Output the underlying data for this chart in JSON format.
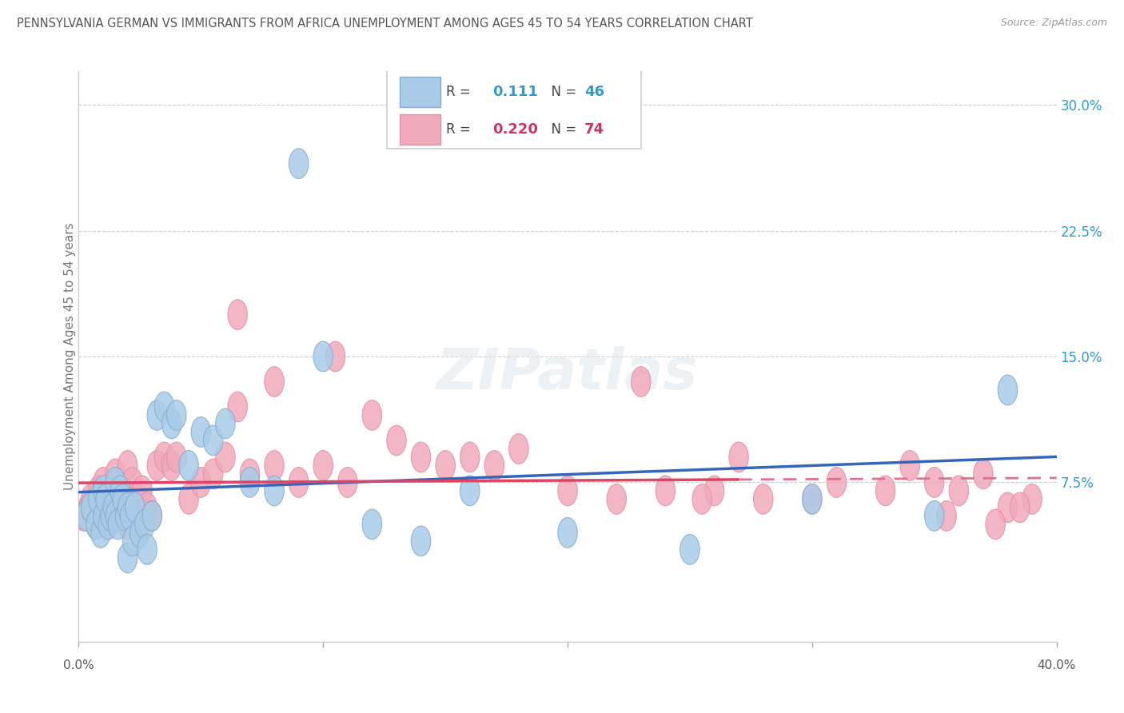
{
  "title": "PENNSYLVANIA GERMAN VS IMMIGRANTS FROM AFRICA UNEMPLOYMENT AMONG AGES 45 TO 54 YEARS CORRELATION CHART",
  "source": "Source: ZipAtlas.com",
  "ylabel": "Unemployment Among Ages 45 to 54 years",
  "xlim": [
    0,
    40
  ],
  "ylim": [
    -2,
    32
  ],
  "yticks": [
    0,
    7.5,
    15.0,
    22.5,
    30.0
  ],
  "ytick_labels": [
    "",
    "7.5%",
    "15.0%",
    "22.5%",
    "30.0%"
  ],
  "blue_R": "0.111",
  "blue_N": "46",
  "pink_R": "0.220",
  "pink_N": "74",
  "blue_color": "#a8cce8",
  "pink_color": "#f0aabb",
  "blue_line_color": "#3366bb",
  "pink_line_color": "#dd4466",
  "pink_line_dash_color": "#e07090",
  "title_color": "#555555",
  "blue_label_color": "#3399cc",
  "pink_label_color": "#cc3366",
  "watermark": "ZIPatlas",
  "blue_scatter_x": [
    0.3,
    0.5,
    0.7,
    0.8,
    0.9,
    1.0,
    1.0,
    1.1,
    1.2,
    1.3,
    1.4,
    1.5,
    1.5,
    1.6,
    1.7,
    1.8,
    1.9,
    2.0,
    2.0,
    2.1,
    2.2,
    2.3,
    2.5,
    2.7,
    2.8,
    3.0,
    3.2,
    3.5,
    3.8,
    4.0,
    4.5,
    5.0,
    5.5,
    6.0,
    7.0,
    8.0,
    9.0,
    10.0,
    12.0,
    14.0,
    16.0,
    20.0,
    25.0,
    30.0,
    35.0,
    38.0
  ],
  "blue_scatter_y": [
    5.5,
    6.0,
    5.0,
    6.5,
    4.5,
    5.5,
    7.0,
    6.5,
    5.0,
    5.5,
    6.0,
    5.5,
    7.5,
    5.0,
    7.0,
    6.5,
    5.5,
    6.0,
    3.0,
    5.5,
    4.0,
    6.0,
    4.5,
    5.0,
    3.5,
    5.5,
    11.5,
    12.0,
    11.0,
    11.5,
    8.5,
    10.5,
    10.0,
    11.0,
    7.5,
    7.0,
    26.5,
    15.0,
    5.0,
    4.0,
    7.0,
    4.5,
    3.5,
    6.5,
    5.5,
    13.0
  ],
  "pink_scatter_x": [
    0.2,
    0.4,
    0.5,
    0.6,
    0.7,
    0.8,
    0.9,
    1.0,
    1.0,
    1.1,
    1.2,
    1.3,
    1.4,
    1.5,
    1.5,
    1.6,
    1.7,
    1.8,
    1.9,
    2.0,
    2.0,
    2.1,
    2.2,
    2.3,
    2.4,
    2.5,
    2.6,
    2.7,
    2.8,
    3.0,
    3.2,
    3.5,
    3.8,
    4.0,
    4.5,
    5.0,
    5.5,
    6.0,
    6.5,
    7.0,
    8.0,
    9.0,
    10.0,
    11.0,
    12.0,
    13.0,
    14.0,
    15.0,
    16.0,
    17.0,
    18.0,
    20.0,
    22.0,
    24.0,
    26.0,
    27.0,
    28.0,
    30.0,
    31.0,
    33.0,
    34.0,
    35.0,
    36.0,
    37.0,
    38.0,
    39.0,
    6.5,
    8.0,
    10.5,
    23.0,
    25.5,
    35.5,
    37.5,
    38.5
  ],
  "pink_scatter_y": [
    5.5,
    6.0,
    6.5,
    5.5,
    5.0,
    7.0,
    6.0,
    5.5,
    7.5,
    6.5,
    5.0,
    6.0,
    5.5,
    7.0,
    8.0,
    6.0,
    5.5,
    7.0,
    6.5,
    5.0,
    8.5,
    5.5,
    7.5,
    5.5,
    6.5,
    5.0,
    7.0,
    5.5,
    6.0,
    5.5,
    8.5,
    9.0,
    8.5,
    9.0,
    6.5,
    7.5,
    8.0,
    9.0,
    12.0,
    8.0,
    8.5,
    7.5,
    8.5,
    7.5,
    11.5,
    10.0,
    9.0,
    8.5,
    9.0,
    8.5,
    9.5,
    7.0,
    6.5,
    7.0,
    7.0,
    9.0,
    6.5,
    6.5,
    7.5,
    7.0,
    8.5,
    7.5,
    7.0,
    8.0,
    6.0,
    6.5,
    17.5,
    13.5,
    15.0,
    13.5,
    6.5,
    5.5,
    5.0,
    6.0
  ]
}
